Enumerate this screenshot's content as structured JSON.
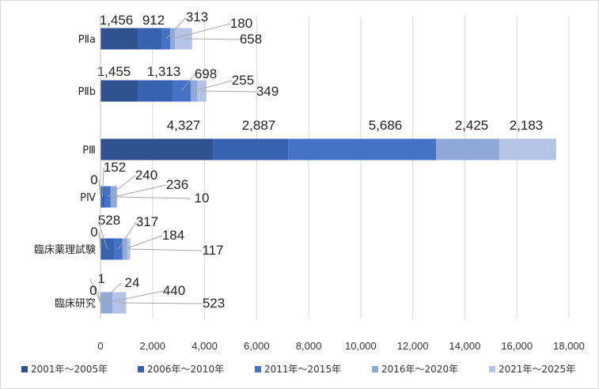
{
  "chart_data": {
    "type": "bar",
    "orientation": "horizontal",
    "stacked": true,
    "categories": [
      "PⅡa",
      "PⅡb",
      "PⅢ",
      "PⅣ",
      "臨床薬理試験",
      "臨床研究"
    ],
    "series": [
      {
        "name": "2001年～2005年",
        "color": "#2f528f",
        "values": [
          1456,
          1455,
          4327,
          0,
          0,
          0
        ]
      },
      {
        "name": "2006年～2010年",
        "color": "#3762b0",
        "values": [
          912,
          1313,
          2887,
          152,
          528,
          1
        ]
      },
      {
        "name": "2011年～2015年",
        "color": "#4472c4",
        "values": [
          313,
          698,
          5686,
          240,
          317,
          24
        ]
      },
      {
        "name": "2016年～2020年",
        "color": "#8fa8d8",
        "values": [
          180,
          255,
          2425,
          236,
          184,
          440
        ]
      },
      {
        "name": "2021年～2025年",
        "color": "#b4c3e6",
        "values": [
          658,
          349,
          2183,
          10,
          117,
          523
        ]
      }
    ],
    "xlim": [
      0,
      18000
    ],
    "xticks": [
      0,
      2000,
      4000,
      6000,
      8000,
      10000,
      12000,
      14000,
      16000,
      18000
    ],
    "xtick_labels": [
      "0",
      "2,000",
      "4,000",
      "6,000",
      "8,000",
      "10,000",
      "12,000",
      "14,000",
      "16,000",
      "18,000"
    ],
    "data_labels": [
      [
        "1,456",
        "912",
        "313",
        "180",
        "658"
      ],
      [
        "1,455",
        "1,313",
        "698",
        "255",
        "349"
      ],
      [
        "4,327",
        "2,887",
        "5,686",
        "2,425",
        "2,183"
      ],
      [
        "0",
        "152",
        "240",
        "236",
        "10"
      ],
      [
        "0",
        "528",
        "317",
        "184",
        "117"
      ],
      [
        "0",
        "1",
        "24",
        "440",
        "523"
      ]
    ],
    "grid": "vertical",
    "legend": "bottom",
    "title": "",
    "xlabel": "",
    "ylabel": ""
  }
}
